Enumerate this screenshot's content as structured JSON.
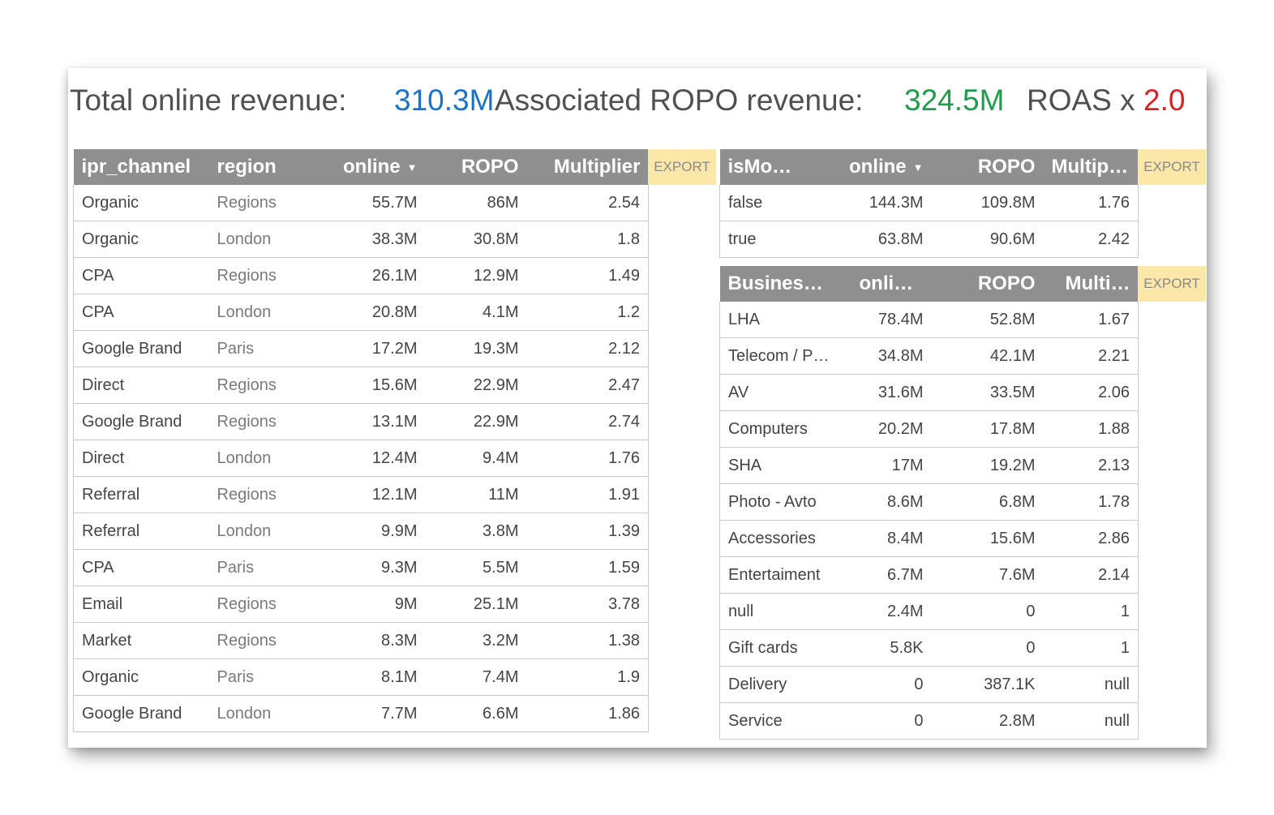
{
  "header": {
    "total_label": "Total online revenue:",
    "total_value": "310.3M",
    "assoc_label": "Associated ROPO revenue:",
    "assoc_value": "324.5M",
    "roas_label": "ROAS x",
    "roas_value": "2.0"
  },
  "colors": {
    "total": "#1a73c8",
    "assoc": "#1e9e4a",
    "roas": "#e02020",
    "header_bg": "#8f8f8f",
    "export_bg": "#fbe7a8"
  },
  "export_label": "EXPORT",
  "sort_icon": "sort-descending-caret",
  "table_channels": {
    "columns": [
      "ipr_channel",
      "region",
      "online",
      "ROPO",
      "Multiplier"
    ],
    "rows": [
      [
        "Organic",
        "Regions",
        "55.7M",
        "86M",
        "2.54"
      ],
      [
        "Organic",
        "London",
        "38.3M",
        "30.8M",
        "1.8"
      ],
      [
        "CPA",
        "Regions",
        "26.1M",
        "12.9M",
        "1.49"
      ],
      [
        "CPA",
        "London",
        "20.8M",
        "4.1M",
        "1.2"
      ],
      [
        "Google Brand",
        "Paris",
        "17.2M",
        "19.3M",
        "2.12"
      ],
      [
        "Direct",
        "Regions",
        "15.6M",
        "22.9M",
        "2.47"
      ],
      [
        "Google Brand",
        "Regions",
        "13.1M",
        "22.9M",
        "2.74"
      ],
      [
        "Direct",
        "London",
        "12.4M",
        "9.4M",
        "1.76"
      ],
      [
        "Referral",
        "Regions",
        "12.1M",
        "11M",
        "1.91"
      ],
      [
        "Referral",
        "London",
        "9.9M",
        "3.8M",
        "1.39"
      ],
      [
        "CPA",
        "Paris",
        "9.3M",
        "5.5M",
        "1.59"
      ],
      [
        "Email",
        "Regions",
        "9M",
        "25.1M",
        "3.78"
      ],
      [
        "Market",
        "Regions",
        "8.3M",
        "3.2M",
        "1.38"
      ],
      [
        "Organic",
        "Paris",
        "8.1M",
        "7.4M",
        "1.9"
      ],
      [
        "Google Brand",
        "London",
        "7.7M",
        "6.6M",
        "1.86"
      ]
    ]
  },
  "table_mobile": {
    "columns": [
      "isMo…",
      "online",
      "ROPO",
      "Multipl…"
    ],
    "rows": [
      [
        "false",
        "144.3M",
        "109.8M",
        "1.76"
      ],
      [
        "true",
        "63.8M",
        "90.6M",
        "2.42"
      ]
    ]
  },
  "table_business": {
    "columns": [
      "Busines…",
      "online",
      "ROPO",
      "Multi…"
    ],
    "rows": [
      [
        "LHA",
        "78.4M",
        "52.8M",
        "1.67"
      ],
      [
        "Telecom / P…",
        "34.8M",
        "42.1M",
        "2.21"
      ],
      [
        "AV",
        "31.6M",
        "33.5M",
        "2.06"
      ],
      [
        "Computers",
        "20.2M",
        "17.8M",
        "1.88"
      ],
      [
        "SHA",
        "17M",
        "19.2M",
        "2.13"
      ],
      [
        "Photo - Avto",
        "8.6M",
        "6.8M",
        "1.78"
      ],
      [
        "Accessories",
        "8.4M",
        "15.6M",
        "2.86"
      ],
      [
        "Entertaiment",
        "6.7M",
        "7.6M",
        "2.14"
      ],
      [
        "null",
        "2.4M",
        "0",
        "1"
      ],
      [
        "Gift cards",
        "5.8K",
        "0",
        "1"
      ],
      [
        "Delivery",
        "0",
        "387.1K",
        "null"
      ],
      [
        "Service",
        "0",
        "2.8M",
        "null"
      ]
    ]
  }
}
